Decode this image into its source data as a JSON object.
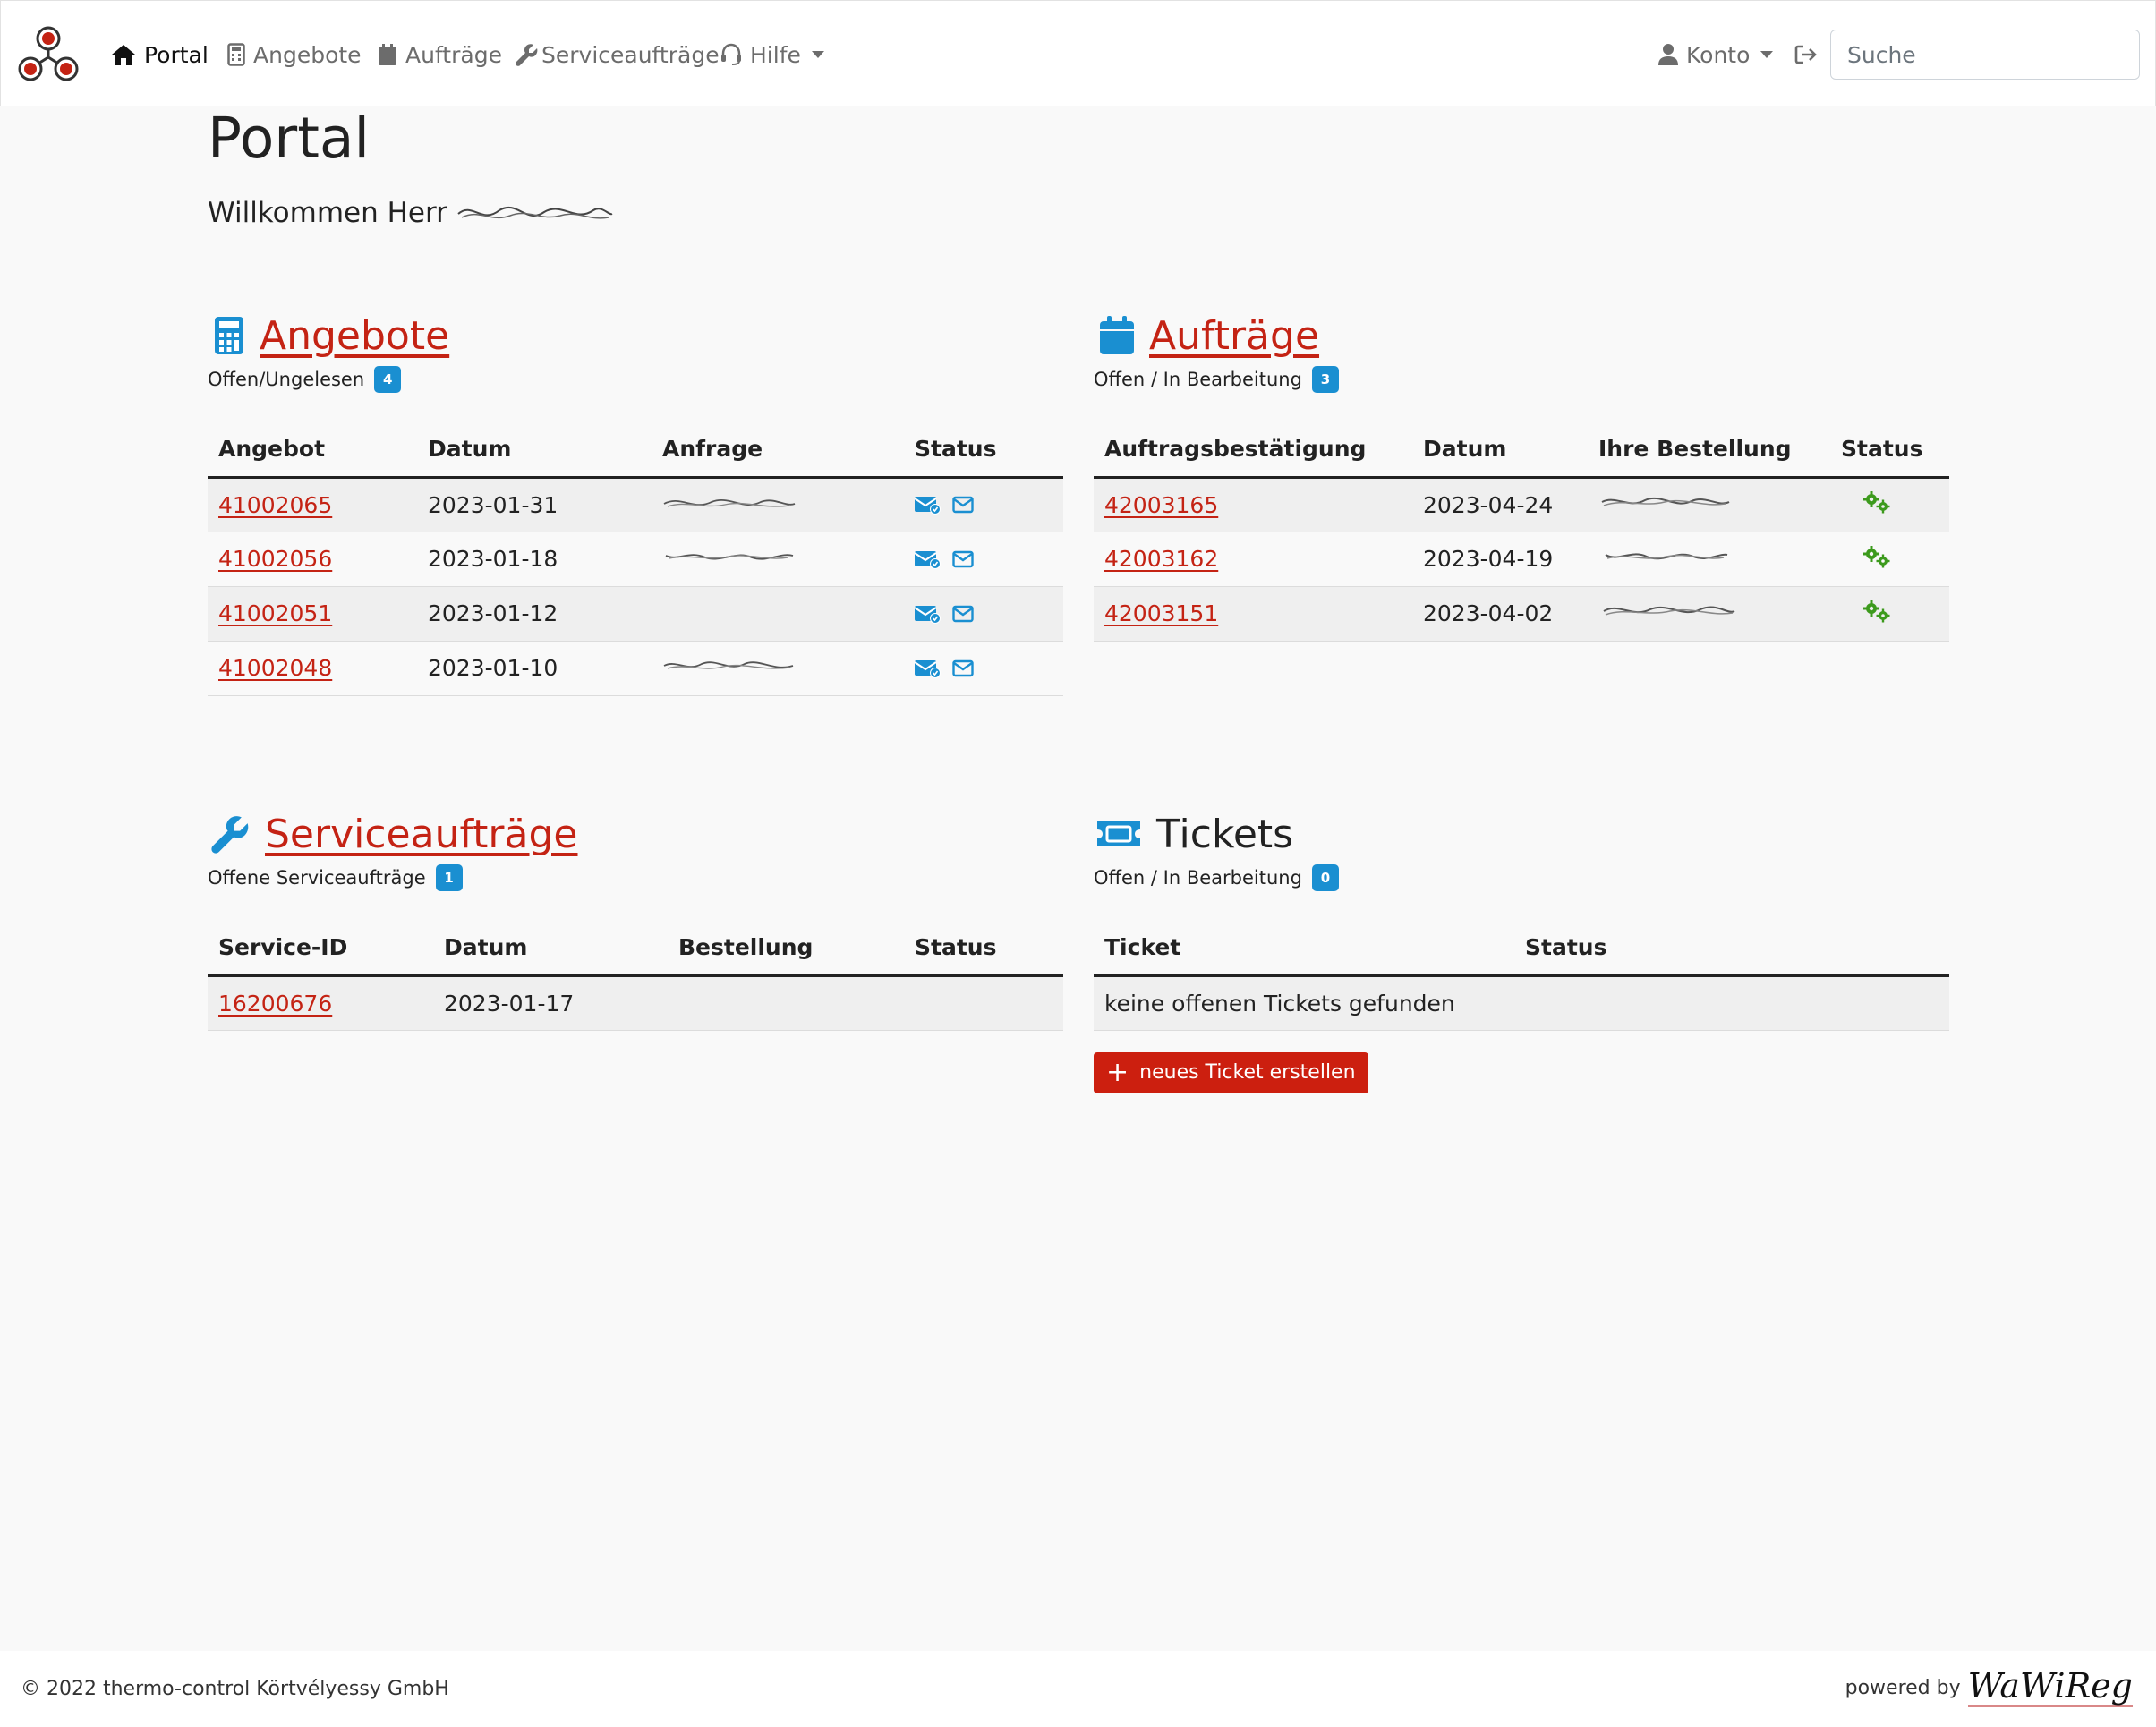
{
  "nav": {
    "items": [
      {
        "label": "Portal",
        "icon": "home-icon"
      },
      {
        "label": "Angebote",
        "icon": "calculator-icon"
      },
      {
        "label": "Aufträge",
        "icon": "calendar-icon"
      },
      {
        "label": "Serviceaufträge",
        "icon": "wrench-icon"
      },
      {
        "label": "Hilfe",
        "icon": "headset-icon"
      }
    ],
    "account_label": "Konto",
    "search_placeholder": "Suche"
  },
  "page": {
    "title": "Portal",
    "welcome": "Willkommen Herr"
  },
  "angebote": {
    "title": "Angebote",
    "subtitle": "Offen/Ungelesen",
    "count": "4",
    "columns": [
      "Angebot",
      "Datum",
      "Anfrage",
      "Status"
    ],
    "rows": [
      {
        "id": "41002065",
        "date": "2023-01-31"
      },
      {
        "id": "41002056",
        "date": "2023-01-18"
      },
      {
        "id": "41002051",
        "date": "2023-01-12"
      },
      {
        "id": "41002048",
        "date": "2023-01-10"
      }
    ]
  },
  "auftraege": {
    "title": "Aufträge",
    "subtitle": "Offen / In Bearbeitung",
    "count": "3",
    "columns": [
      "Auftragsbestätigung",
      "Datum",
      "Ihre Bestellung",
      "Status"
    ],
    "rows": [
      {
        "id": "42003165",
        "date": "2023-04-24"
      },
      {
        "id": "42003162",
        "date": "2023-04-19"
      },
      {
        "id": "42003151",
        "date": "2023-04-02"
      }
    ]
  },
  "service": {
    "title": "Serviceaufträge",
    "subtitle": "Offene Serviceaufträge",
    "count": "1",
    "columns": [
      "Service-ID",
      "Datum",
      "Bestellung",
      "Status"
    ],
    "rows": [
      {
        "id": "16200676",
        "date": "2023-01-17"
      }
    ]
  },
  "tickets": {
    "title": "Tickets",
    "subtitle": "Offen / In Bearbeitung",
    "count": "0",
    "columns": [
      "Ticket",
      "Status"
    ],
    "empty": "keine offenen Tickets gefunden",
    "new_button": "neues Ticket erstellen"
  },
  "footer": {
    "copyright": "© 2022 thermo-control Körtvélyessy GmbH",
    "powered_by": "powered by",
    "brand": "WaWiReg"
  },
  "colors": {
    "accent_red": "#c42314",
    "icon_blue": "#1a8fd1",
    "status_green": "#3c9a1c"
  }
}
